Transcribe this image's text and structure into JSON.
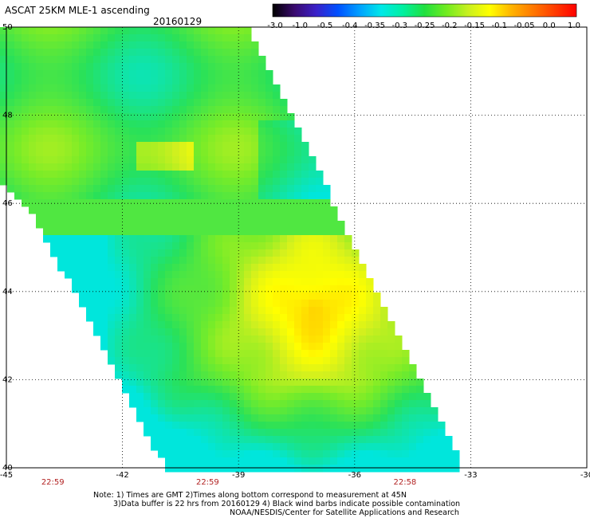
{
  "header": {
    "title": "ASCAT 25KM MLE-1 ascending",
    "date": "20160129"
  },
  "colorbar": {
    "ticks": [
      "-3.0",
      "-1.0",
      "-0.5",
      "-0.4",
      "-0.35",
      "-0.3",
      "-0.25",
      "-0.2",
      "-0.15",
      "-0.1",
      "-0.05",
      "0.0",
      "1.0"
    ],
    "colors": [
      "#000000",
      "#3a0a6e",
      "#3a20c8",
      "#0050ff",
      "#00a0ff",
      "#00e8e8",
      "#00f0a0",
      "#20e040",
      "#70ec20",
      "#c8f020",
      "#ffff00",
      "#ffb400",
      "#ff7800",
      "#ff3c00",
      "#ff0000"
    ]
  },
  "axes": {
    "lon_labels": [
      "-45",
      "-42",
      "-39",
      "-36",
      "-33",
      "-30"
    ],
    "lat_labels": [
      "50",
      "48",
      "46",
      "44",
      "42",
      "40"
    ],
    "time_labels": [
      "22:59",
      "22:59",
      "22:58"
    ]
  },
  "notes": {
    "line1": "Note: 1) Times are GMT 2)Times along bottom correspond to measurement at 45N",
    "line2": "3)Data buffer is 22 hrs from 20160129 4) Black wind barbs indicate possible contamination",
    "line3": "NOAA/NESDIS/Center for Satellite Applications and Research"
  }
}
